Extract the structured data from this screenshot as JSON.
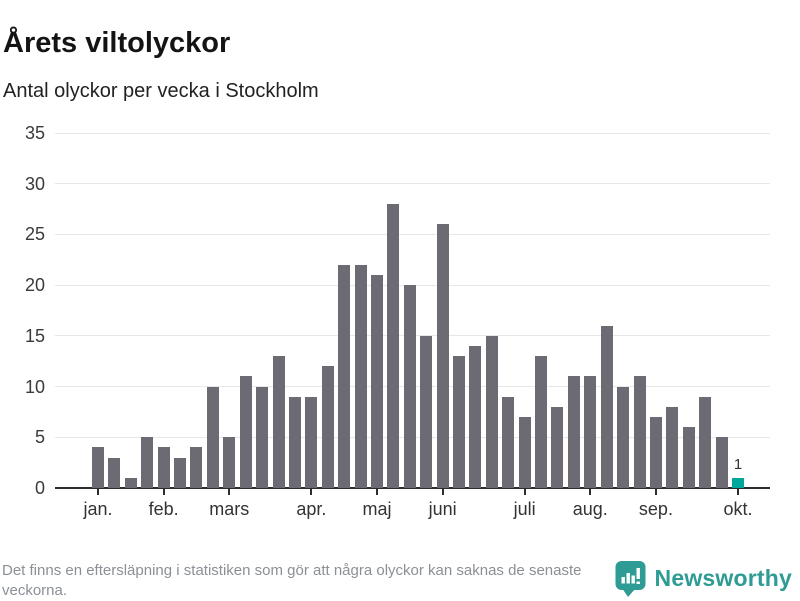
{
  "header": {
    "title": "Årets viltolyckor",
    "subtitle": "Antal olyckor per vecka i Stockholm"
  },
  "chart_data": {
    "type": "bar",
    "title": "Årets viltolyckor",
    "subtitle": "Antal olyckor per vecka i Stockholm",
    "x_unit": "vecka",
    "values": [
      4,
      3,
      1,
      5,
      4,
      3,
      4,
      10,
      5,
      11,
      10,
      13,
      9,
      9,
      12,
      22,
      22,
      21,
      28,
      20,
      15,
      26,
      13,
      14,
      15,
      9,
      7,
      13,
      8,
      11,
      11,
      16,
      10,
      11,
      7,
      8,
      6,
      9,
      5,
      1
    ],
    "highlight_last": true,
    "highlight_value_label": "1",
    "bar_color": "#6c6b73",
    "highlight_color": "#00a79b",
    "y_ticks": [
      0,
      5,
      10,
      15,
      20,
      25,
      30,
      35
    ],
    "ylim": [
      0,
      35
    ],
    "grid": true,
    "legend": "none",
    "month_labels": [
      {
        "label": "jan.",
        "week": 1
      },
      {
        "label": "feb.",
        "week": 5
      },
      {
        "label": "mars",
        "week": 9
      },
      {
        "label": "apr.",
        "week": 14
      },
      {
        "label": "maj",
        "week": 18
      },
      {
        "label": "juni",
        "week": 22
      },
      {
        "label": "juli",
        "week": 27
      },
      {
        "label": "aug.",
        "week": 31
      },
      {
        "label": "sep.",
        "week": 35
      },
      {
        "label": "okt.",
        "week": 40
      }
    ]
  },
  "footer": {
    "note": "Det finns en eftersläpning i statistiken som gör att några olyckor kan saknas de senaste veckorna.",
    "brand": "Newsworthy",
    "brand_color": "#2e9c94"
  }
}
